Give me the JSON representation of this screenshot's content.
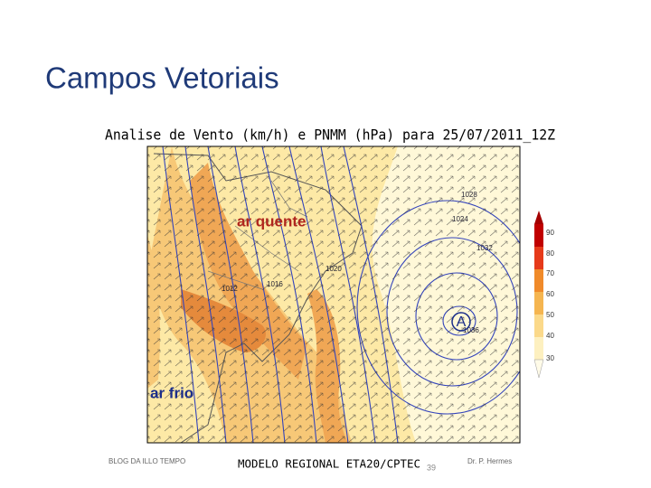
{
  "header": {
    "title": "Campos Vetoriais"
  },
  "map": {
    "title": "Analise de Vento (km/h) e PNMM (hPa) para 25/07/2011_12Z",
    "labels": [
      "ar quente",
      "ar frio"
    ],
    "high": "A",
    "isobars": [
      "1036",
      "1032",
      "1028",
      "1024",
      "1020",
      "1016",
      "1012"
    ],
    "colorbar": [
      "90",
      "80",
      "70",
      "60",
      "50",
      "40",
      "30"
    ],
    "footer": "MODELO REGIONAL ETA20/CPTEC",
    "footer_left": "BLOG DA ILLO TEMPO",
    "footer_right": "Dr. P. Hermes"
  },
  "page_number": "39"
}
